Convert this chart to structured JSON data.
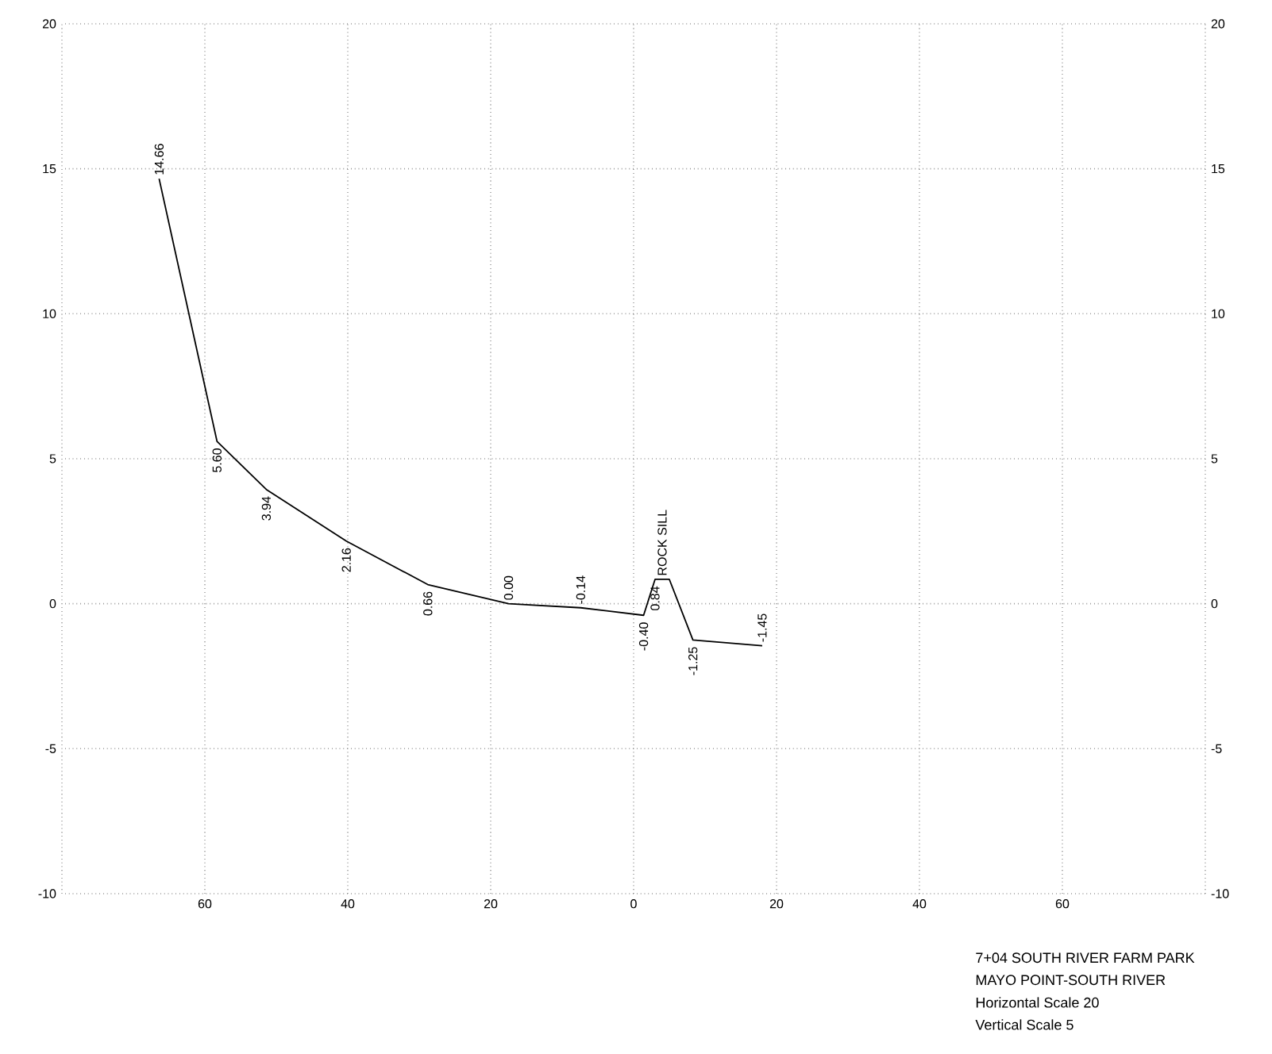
{
  "chart_data": {
    "type": "line",
    "x": [
      66.4,
      58.3,
      51.4,
      40.2,
      28.8,
      17.5,
      7.4,
      -1.4,
      -3.0,
      -5.0,
      -8.3,
      -18.0
    ],
    "series": [
      {
        "color": "#000000",
        "values": [
          14.66,
          5.6,
          3.94,
          2.16,
          0.66,
          0.0,
          -0.14,
          -0.4,
          0.84,
          0.84,
          -1.25,
          -1.45
        ],
        "value_labels": [
          "14.66",
          "5.60",
          "3.94",
          "2.16",
          "0.66",
          "0.00",
          "-0.14",
          "-0.40",
          "0.84",
          null,
          "-1.25",
          "-1.45"
        ]
      }
    ],
    "xlim": [
      80,
      -80
    ],
    "xticks": [
      {
        "value": 80,
        "label": null
      },
      60,
      40,
      20,
      0,
      {
        "value": -20,
        "label": "20"
      },
      {
        "value": -40,
        "label": "40"
      },
      {
        "value": -60,
        "label": "60"
      },
      {
        "value": -80,
        "label": null
      }
    ],
    "ylim": [
      -10,
      20
    ],
    "yticks": [
      -10,
      -5,
      0,
      5,
      10,
      15,
      20
    ],
    "y2lim": [
      -10,
      20
    ],
    "y2ticks": [
      -10,
      -5,
      0,
      5,
      10,
      15,
      20
    ],
    "grid": true,
    "annotations": [
      {
        "text": "ROCK SILL",
        "x": -4.0,
        "y": 0.84
      },
      "7+04 SOUTH RIVER FARM PARK",
      "MAYO POINT-SOUTH RIVER",
      "Horizontal Scale 20",
      "Vertical Scale 5"
    ]
  }
}
